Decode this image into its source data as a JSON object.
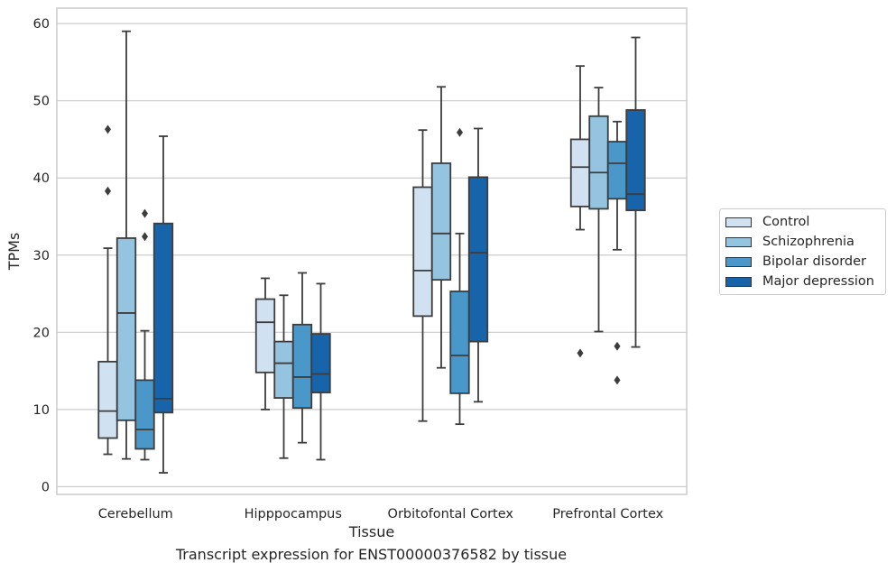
{
  "chart_data": {
    "type": "box",
    "title": "",
    "xlabel": "Tissue",
    "ylabel": "TPMs",
    "ylim": [
      -1,
      62
    ],
    "yticks": [
      0,
      10,
      20,
      30,
      40,
      50,
      60
    ],
    "grid": "horizontal",
    "legend_position": "right",
    "categories": [
      "Cerebellum",
      "Hipppocampus",
      "Orbitofontal Cortex",
      "Prefrontal Cortex"
    ],
    "series": [
      {
        "name": "Control",
        "color": "#d0e1f2",
        "boxes": [
          {
            "min": 4.2,
            "q1": 6.3,
            "median": 9.8,
            "q3": 16.2,
            "max": 30.9,
            "outliers": [
              38.3,
              46.3
            ]
          },
          {
            "min": 10.0,
            "q1": 14.8,
            "median": 21.3,
            "q3": 24.3,
            "max": 27.0,
            "outliers": []
          },
          {
            "min": 8.5,
            "q1": 22.1,
            "median": 28.0,
            "q3": 38.8,
            "max": 46.2,
            "outliers": []
          },
          {
            "min": 33.3,
            "q1": 36.3,
            "median": 41.4,
            "q3": 45.0,
            "max": 54.5,
            "outliers": [
              17.3
            ]
          }
        ]
      },
      {
        "name": "Schizophrenia",
        "color": "#94c4df",
        "boxes": [
          {
            "min": 3.6,
            "q1": 8.6,
            "median": 22.5,
            "q3": 32.2,
            "max": 59.0,
            "outliers": []
          },
          {
            "min": 3.7,
            "q1": 11.5,
            "median": 16.0,
            "q3": 18.8,
            "max": 24.8,
            "outliers": []
          },
          {
            "min": 15.4,
            "q1": 26.8,
            "median": 32.8,
            "q3": 41.9,
            "max": 51.8,
            "outliers": []
          },
          {
            "min": 20.1,
            "q1": 36.0,
            "median": 40.7,
            "q3": 48.0,
            "max": 51.7,
            "outliers": []
          }
        ]
      },
      {
        "name": "Bipolar disorder",
        "color": "#4a98c9",
        "boxes": [
          {
            "min": 3.5,
            "q1": 4.9,
            "median": 7.4,
            "q3": 13.8,
            "max": 20.2,
            "outliers": [
              32.4,
              35.4
            ]
          },
          {
            "min": 5.7,
            "q1": 10.2,
            "median": 14.2,
            "q3": 21.0,
            "max": 27.7,
            "outliers": []
          },
          {
            "min": 8.1,
            "q1": 12.1,
            "median": 17.0,
            "q3": 25.3,
            "max": 32.8,
            "outliers": [
              45.9
            ]
          },
          {
            "min": 30.7,
            "q1": 37.3,
            "median": 41.9,
            "q3": 44.7,
            "max": 47.3,
            "outliers": [
              18.2,
              13.8
            ]
          }
        ]
      },
      {
        "name": "Major depression",
        "color": "#1764ab",
        "boxes": [
          {
            "min": 1.8,
            "q1": 9.6,
            "median": 11.4,
            "q3": 34.1,
            "max": 45.4,
            "outliers": []
          },
          {
            "min": 3.5,
            "q1": 12.2,
            "median": 14.6,
            "q3": 19.8,
            "max": 26.3,
            "outliers": []
          },
          {
            "min": 11.0,
            "q1": 18.8,
            "median": 30.3,
            "q3": 40.1,
            "max": 46.4,
            "outliers": []
          },
          {
            "min": 18.1,
            "q1": 35.8,
            "median": 37.9,
            "q3": 48.8,
            "max": 58.2,
            "outliers": []
          }
        ]
      }
    ]
  },
  "caption": "Transcript expression for ENST00000376582 by tissue"
}
